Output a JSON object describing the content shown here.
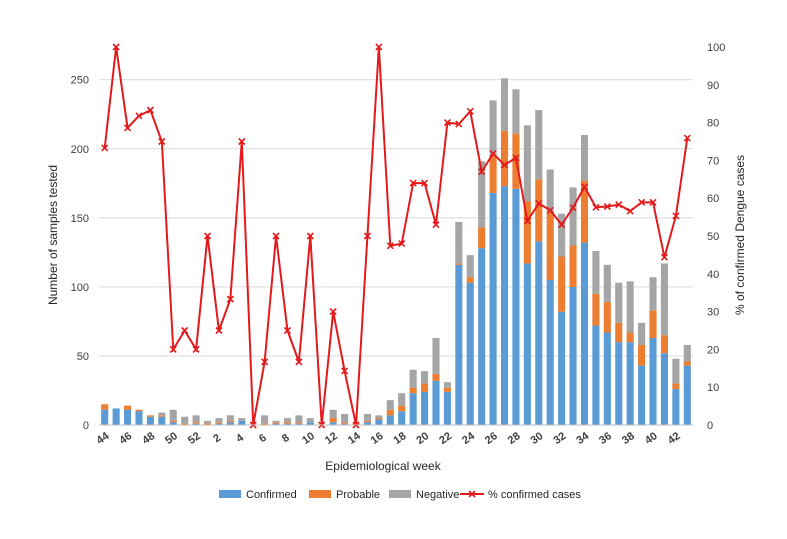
{
  "chart_data": {
    "type": "bar",
    "subtype": "stacked-bar-with-line-on-secondary-axis",
    "xlabel": "Epidemiological week",
    "ylabel": "Number of samples tested",
    "y2label": "% of confirmed Dengue cases",
    "ylim": [
      0,
      265
    ],
    "yticks": [
      0,
      50,
      100,
      150,
      200,
      250
    ],
    "y2lim": [
      0,
      100
    ],
    "y2ticks": [
      0,
      10,
      20,
      30,
      40,
      50,
      60,
      70,
      80,
      90,
      100
    ],
    "grid": "horizontal",
    "legend_position": "bottom",
    "categories": [
      "44",
      "45",
      "46",
      "47",
      "48",
      "49",
      "50",
      "51",
      "52",
      "1",
      "2",
      "3",
      "4",
      "5",
      "6",
      "7",
      "8",
      "9",
      "10",
      "11",
      "12",
      "13",
      "14",
      "15",
      "16",
      "17",
      "18",
      "19",
      "20",
      "21",
      "22",
      "23",
      "24",
      "25",
      "26",
      "27",
      "28",
      "29",
      "30",
      "31",
      "32",
      "33",
      "34",
      "35",
      "36",
      "37",
      "38",
      "39",
      "40",
      "41",
      "42",
      "43"
    ],
    "tick_labels": [
      "44",
      "46",
      "48",
      "50",
      "52",
      "2",
      "4",
      "6",
      "8",
      "10",
      "12",
      "14",
      "16",
      "18",
      "20",
      "22",
      "24",
      "26",
      "28",
      "30",
      "32",
      "34",
      "36",
      "38",
      "40",
      "42"
    ],
    "series": [
      {
        "name": "Confirmed",
        "color": "#5B9BD5",
        "values": [
          11,
          12,
          11,
          10,
          6,
          6,
          2,
          0,
          1,
          0,
          1,
          2,
          3,
          0,
          0,
          1,
          1,
          1,
          2,
          0,
          2,
          1,
          0,
          2,
          4,
          7,
          10,
          23,
          24,
          32,
          24,
          116,
          103,
          128,
          168,
          173,
          171,
          117,
          133,
          105,
          82,
          100,
          132,
          72,
          67,
          60,
          60,
          43,
          63,
          52,
          26,
          43
        ]
      },
      {
        "name": "Probable",
        "color": "#ED7D31",
        "values": [
          4,
          0,
          3,
          1,
          1,
          1,
          1,
          1,
          1,
          1,
          1,
          1,
          0,
          0,
          1,
          1,
          1,
          1,
          0,
          0,
          3,
          1,
          1,
          1,
          1,
          4,
          4,
          4,
          6,
          5,
          3,
          1,
          4,
          15,
          27,
          40,
          40,
          45,
          45,
          50,
          40,
          30,
          45,
          23,
          22,
          14,
          7,
          15,
          20,
          13,
          4,
          3
        ]
      },
      {
        "name": "Negative",
        "color": "#A5A5A5",
        "values": [
          0,
          0,
          0,
          0,
          0,
          2,
          8,
          5,
          5,
          2,
          3,
          4,
          2,
          0,
          6,
          1,
          3,
          5,
          3,
          0,
          6,
          6,
          0,
          5,
          2,
          7,
          9,
          13,
          9,
          26,
          4,
          30,
          16,
          48,
          40,
          38,
          32,
          55,
          50,
          30,
          31,
          42,
          33,
          31,
          27,
          29,
          37,
          16,
          24,
          52,
          18,
          12
        ]
      },
      {
        "name": "% confirmed cases",
        "color": "#E31A1C",
        "axis": "secondary",
        "values": [
          73.3,
          100,
          78.6,
          81.8,
          83.3,
          75,
          20,
          25,
          20,
          50,
          25,
          33.3,
          75,
          0,
          16.7,
          50,
          25,
          16.7,
          50,
          0,
          30,
          14.3,
          0,
          50,
          100,
          47.4,
          48,
          64,
          64,
          53,
          80,
          79.6,
          83,
          67,
          71.8,
          68.8,
          70.7,
          54,
          58.6,
          56.8,
          53,
          57.5,
          63,
          57.6,
          57.8,
          58.3,
          56.6,
          58.9,
          58.9,
          44.4,
          55.3,
          75.9
        ]
      }
    ]
  }
}
